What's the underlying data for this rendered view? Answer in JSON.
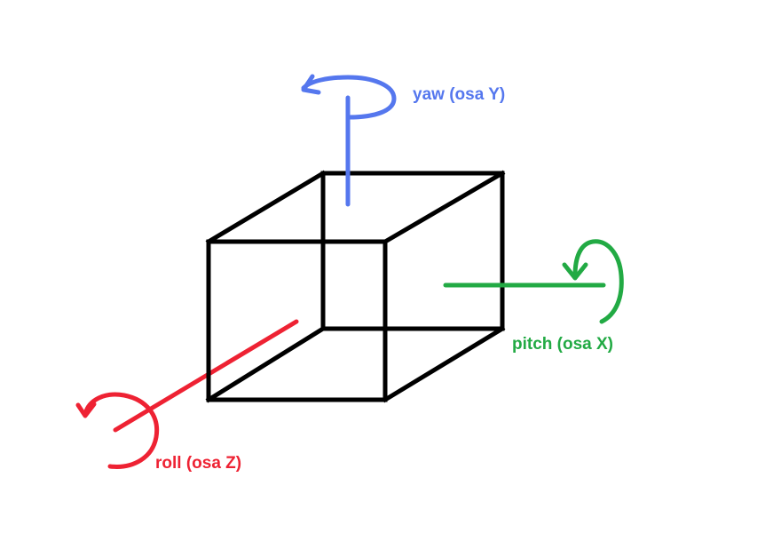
{
  "diagram": {
    "background": "#ffffff",
    "cube_color": "#000000",
    "axes": [
      {
        "id": "yaw",
        "label": "yaw (osa Y)",
        "color": "#5577ee"
      },
      {
        "id": "pitch",
        "label": "pitch (osa X)",
        "color": "#22aa44"
      },
      {
        "id": "roll",
        "label": "roll (osa Z)",
        "color": "#ee2233"
      }
    ]
  }
}
